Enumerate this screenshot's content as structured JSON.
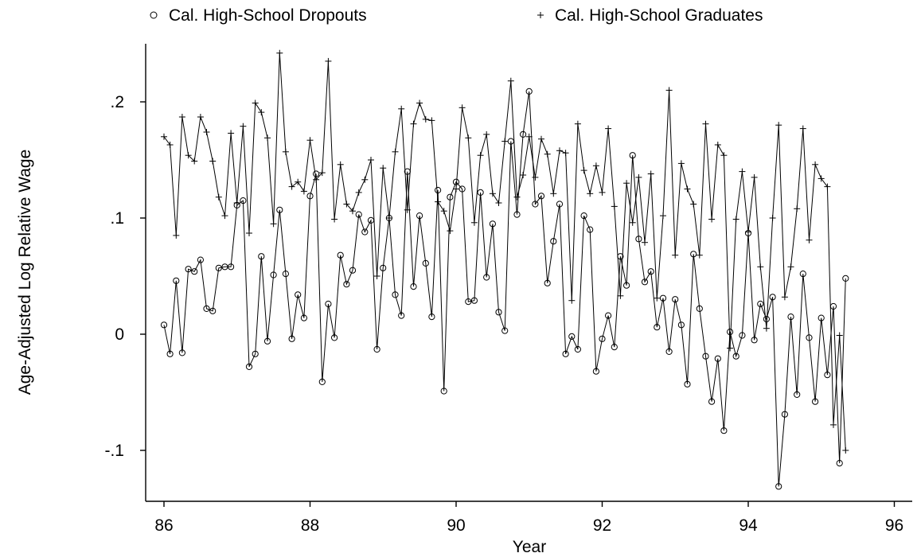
{
  "chart_data": {
    "type": "line",
    "title": "",
    "xlabel": "Year",
    "ylabel": "Age-Adjusted Log Relative Wage",
    "xlim": [
      86,
      96
    ],
    "ylim": [
      -0.145,
      0.25
    ],
    "xticks": [
      86,
      88,
      90,
      92,
      94,
      96
    ],
    "xtick_labels": [
      "86",
      "88",
      "90",
      "92",
      "94",
      "96"
    ],
    "yticks": [
      -0.1,
      0,
      0.1,
      0.2
    ],
    "ytick_labels": [
      "-.1",
      "0",
      ".1",
      ".2"
    ],
    "grid": false,
    "legend_position": "top",
    "series": [
      {
        "name": "Cal. High-School Dropouts",
        "marker": "circle",
        "x_start": 86.0,
        "x_step": 0.0833333,
        "values": [
          0.008,
          -0.017,
          0.046,
          -0.016,
          0.056,
          0.054,
          0.064,
          0.022,
          0.02,
          0.057,
          0.058,
          0.058,
          0.111,
          0.115,
          -0.028,
          -0.017,
          0.067,
          -0.006,
          0.051,
          0.107,
          0.052,
          -0.004,
          0.034,
          0.014,
          0.119,
          0.138,
          -0.041,
          0.026,
          -0.003,
          0.068,
          0.043,
          0.055,
          0.103,
          0.088,
          0.098,
          -0.013,
          0.057,
          0.1,
          0.034,
          0.016,
          0.14,
          0.041,
          0.102,
          0.061,
          0.015,
          0.124,
          -0.049,
          0.118,
          0.131,
          0.125,
          0.028,
          0.029,
          0.122,
          0.049,
          0.095,
          0.019,
          0.003,
          0.166,
          0.103,
          0.172,
          0.209,
          0.112,
          0.119,
          0.044,
          0.08,
          0.112,
          -0.017,
          -0.002,
          -0.013,
          0.102,
          0.09,
          -0.032,
          -0.004,
          0.016,
          -0.011,
          0.067,
          0.042,
          0.154,
          0.082,
          0.045,
          0.054,
          0.006,
          0.031,
          -0.015,
          0.03,
          0.008,
          -0.043,
          0.069,
          0.022,
          -0.019,
          -0.058,
          -0.021,
          -0.083,
          0.002,
          -0.019,
          -0.001,
          0.087,
          -0.005,
          0.026,
          0.013,
          0.032,
          -0.131,
          -0.069,
          0.015,
          -0.052,
          0.052,
          -0.003,
          -0.058,
          0.014,
          -0.035,
          0.024,
          -0.111,
          0.048
        ]
      },
      {
        "name": "Cal. High-School Graduates",
        "marker": "plus",
        "x_start": 86.0,
        "x_step": 0.0833333,
        "values": [
          0.17,
          0.163,
          0.085,
          0.187,
          0.154,
          0.149,
          0.187,
          0.174,
          0.149,
          0.118,
          0.102,
          0.173,
          0.113,
          0.179,
          0.087,
          0.199,
          0.191,
          0.169,
          0.095,
          0.242,
          0.157,
          0.127,
          0.131,
          0.123,
          0.167,
          0.133,
          0.139,
          0.235,
          0.099,
          0.146,
          0.112,
          0.106,
          0.122,
          0.133,
          0.15,
          0.05,
          0.143,
          0.1,
          0.157,
          0.194,
          0.107,
          0.181,
          0.199,
          0.185,
          0.184,
          0.114,
          0.106,
          0.089,
          0.125,
          0.195,
          0.169,
          0.096,
          0.154,
          0.172,
          0.121,
          0.113,
          0.166,
          0.218,
          0.118,
          0.137,
          0.17,
          0.135,
          0.168,
          0.155,
          0.121,
          0.158,
          0.156,
          0.029,
          0.181,
          0.141,
          0.121,
          0.145,
          0.122,
          0.177,
          0.11,
          0.033,
          0.13,
          0.096,
          0.135,
          0.079,
          0.138,
          0.031,
          0.102,
          0.21,
          0.068,
          0.147,
          0.125,
          0.112,
          0.068,
          0.181,
          0.099,
          0.163,
          0.154,
          -0.012,
          0.099,
          0.14,
          0.088,
          0.135,
          0.058,
          0.005,
          0.1,
          0.18,
          0.032,
          0.058,
          0.108,
          0.177,
          0.081,
          0.146,
          0.134,
          0.127,
          -0.078,
          -0.001,
          -0.1
        ]
      }
    ]
  },
  "icons": {
    "circle_marker": "circle-marker-icon",
    "plus_marker": "plus-marker-icon"
  }
}
